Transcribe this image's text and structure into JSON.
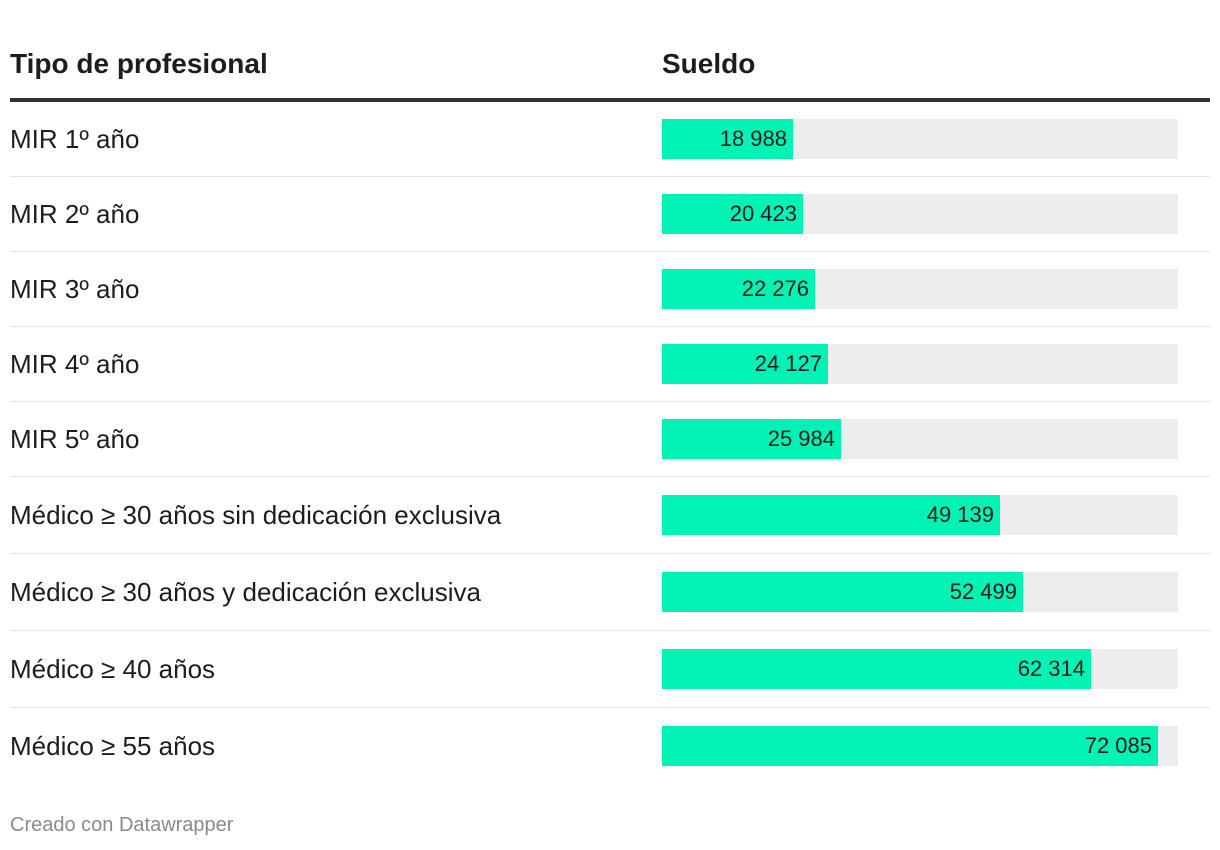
{
  "header": {
    "label_column": "Tipo de profesional",
    "value_column": "Sueldo"
  },
  "chart_data": {
    "type": "bar",
    "categories": [
      "MIR 1º año",
      "MIR 2º año",
      "MIR 3º año",
      "MIR 4º año",
      "MIR 5º año",
      "Médico ≥ 30 años sin dedicación exclusiva",
      "Médico ≥ 30 años y dedicación exclusiva",
      "Médico ≥ 40 años",
      "Médico ≥ 55 años"
    ],
    "values": [
      18988,
      20423,
      22276,
      24127,
      25984,
      49139,
      52499,
      62314,
      72085
    ],
    "value_labels": [
      "18 988",
      "20 423",
      "22 276",
      "24 127",
      "25 984",
      "49 139",
      "52 499",
      "62 314",
      "72 085"
    ],
    "xlim": [
      0,
      75000
    ],
    "colors": {
      "bar": "#00f2b4",
      "track": "#ededed"
    }
  },
  "footer": {
    "credit": "Creado con Datawrapper"
  }
}
